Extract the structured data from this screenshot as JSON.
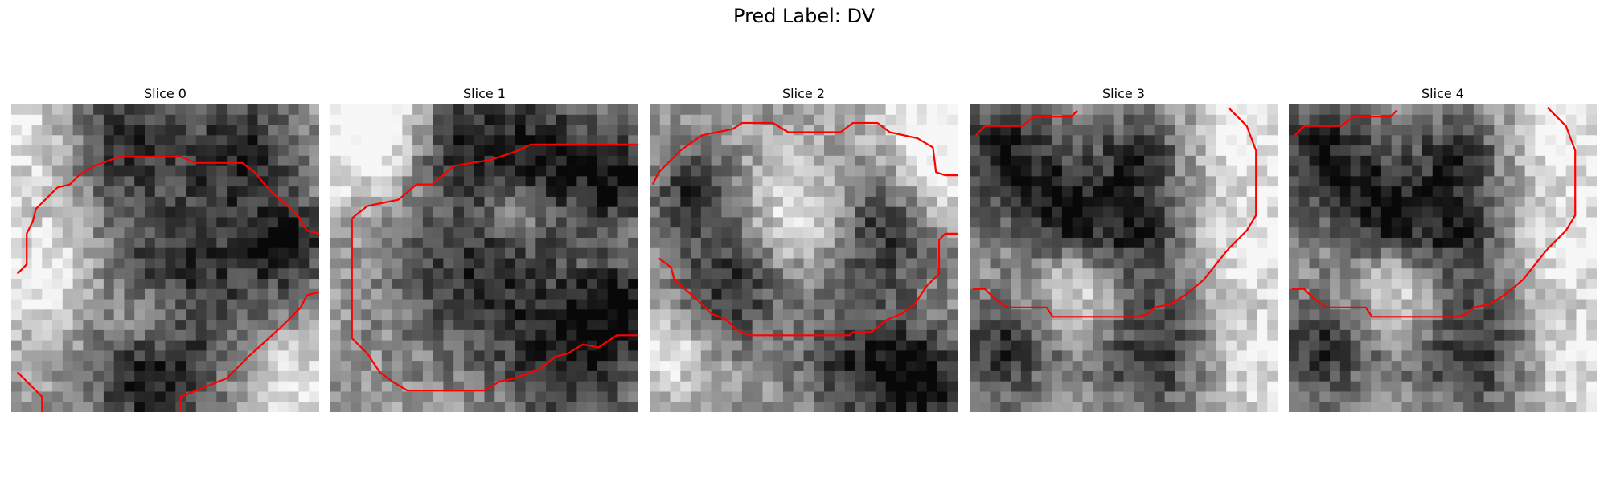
{
  "figure": {
    "title": "Pred Label: DV"
  },
  "slices": [
    {
      "title": "Slice 0",
      "seed": 11,
      "darkBlobs": [
        [
          0.35,
          0.1,
          0.2
        ],
        [
          0.75,
          0.15,
          0.18
        ],
        [
          0.55,
          0.55,
          0.3
        ],
        [
          0.45,
          0.9,
          0.2
        ],
        [
          0.9,
          0.45,
          0.15
        ]
      ],
      "lightBlobs": [
        [
          0.05,
          0.1,
          0.2
        ],
        [
          0.1,
          0.55,
          0.22
        ],
        [
          0.9,
          0.9,
          0.15
        ],
        [
          0.45,
          0.7,
          0.12
        ]
      ],
      "contours": [
        [
          [
            0.02,
            0.55
          ],
          [
            0.05,
            0.52
          ],
          [
            0.05,
            0.42
          ],
          [
            0.07,
            0.38
          ],
          [
            0.08,
            0.34
          ],
          [
            0.12,
            0.3
          ],
          [
            0.15,
            0.27
          ],
          [
            0.19,
            0.26
          ],
          [
            0.22,
            0.23
          ],
          [
            0.27,
            0.2
          ],
          [
            0.35,
            0.17
          ],
          [
            0.55,
            0.17
          ],
          [
            0.6,
            0.19
          ],
          [
            0.75,
            0.19
          ],
          [
            0.79,
            0.22
          ],
          [
            0.84,
            0.28
          ],
          [
            0.93,
            0.36
          ],
          [
            0.96,
            0.41
          ],
          [
            1.0,
            0.42
          ]
        ],
        [
          [
            1.0,
            0.61
          ],
          [
            0.96,
            0.62
          ],
          [
            0.94,
            0.66
          ],
          [
            0.88,
            0.72
          ],
          [
            0.77,
            0.82
          ],
          [
            0.7,
            0.89
          ],
          [
            0.65,
            0.91
          ],
          [
            0.6,
            0.93
          ],
          [
            0.55,
            0.95
          ],
          [
            0.55,
            1.0
          ]
        ],
        [
          [
            0.02,
            0.87
          ],
          [
            0.07,
            0.92
          ],
          [
            0.1,
            0.95
          ],
          [
            0.1,
            1.0
          ]
        ]
      ]
    },
    {
      "title": "Slice 1",
      "seed": 23,
      "darkBlobs": [
        [
          0.4,
          0.1,
          0.18
        ],
        [
          0.7,
          0.15,
          0.2
        ],
        [
          0.95,
          0.25,
          0.15
        ],
        [
          0.5,
          0.55,
          0.3
        ],
        [
          0.8,
          0.85,
          0.22
        ],
        [
          0.95,
          0.65,
          0.15
        ]
      ],
      "lightBlobs": [
        [
          0.05,
          0.1,
          0.25
        ],
        [
          0.2,
          0.05,
          0.15
        ],
        [
          0.6,
          0.35,
          0.1
        ]
      ],
      "contours": [
        [
          [
            0.07,
            0.37
          ],
          [
            0.12,
            0.33
          ],
          [
            0.22,
            0.31
          ],
          [
            0.28,
            0.26
          ],
          [
            0.33,
            0.26
          ],
          [
            0.4,
            0.2
          ],
          [
            0.52,
            0.18
          ],
          [
            0.55,
            0.17
          ],
          [
            0.61,
            0.15
          ],
          [
            0.65,
            0.13
          ],
          [
            1.0,
            0.13
          ]
        ],
        [
          [
            0.07,
            0.37
          ],
          [
            0.07,
            0.76
          ],
          [
            0.12,
            0.81
          ],
          [
            0.16,
            0.87
          ],
          [
            0.2,
            0.9
          ],
          [
            0.25,
            0.93
          ],
          [
            0.5,
            0.93
          ],
          [
            0.55,
            0.9
          ],
          [
            0.6,
            0.89
          ],
          [
            0.68,
            0.86
          ],
          [
            0.73,
            0.82
          ],
          [
            0.77,
            0.81
          ],
          [
            0.82,
            0.78
          ],
          [
            0.87,
            0.79
          ],
          [
            0.9,
            0.77
          ],
          [
            0.93,
            0.75
          ],
          [
            1.0,
            0.75
          ]
        ]
      ]
    },
    {
      "title": "Slice 2",
      "seed": 37,
      "darkBlobs": [
        [
          0.15,
          0.3,
          0.15
        ],
        [
          0.25,
          0.6,
          0.18
        ],
        [
          0.75,
          0.4,
          0.2
        ],
        [
          0.7,
          0.85,
          0.22
        ],
        [
          0.9,
          0.9,
          0.15
        ]
      ],
      "lightBlobs": [
        [
          0.9,
          0.05,
          0.18
        ],
        [
          0.95,
          0.25,
          0.15
        ],
        [
          0.5,
          0.35,
          0.18
        ],
        [
          0.05,
          0.8,
          0.15
        ]
      ],
      "contours": [
        [
          [
            0.01,
            0.26
          ],
          [
            0.03,
            0.22
          ],
          [
            0.07,
            0.18
          ],
          [
            0.1,
            0.15
          ],
          [
            0.17,
            0.1
          ],
          [
            0.27,
            0.08
          ],
          [
            0.3,
            0.06
          ],
          [
            0.4,
            0.06
          ],
          [
            0.45,
            0.09
          ],
          [
            0.62,
            0.09
          ],
          [
            0.66,
            0.06
          ],
          [
            0.74,
            0.06
          ],
          [
            0.78,
            0.09
          ],
          [
            0.87,
            0.11
          ],
          [
            0.92,
            0.14
          ],
          [
            0.93,
            0.22
          ],
          [
            0.96,
            0.23
          ],
          [
            1.0,
            0.23
          ]
        ],
        [
          [
            1.0,
            0.42
          ],
          [
            0.96,
            0.42
          ],
          [
            0.94,
            0.44
          ],
          [
            0.94,
            0.55
          ],
          [
            0.9,
            0.59
          ],
          [
            0.86,
            0.65
          ],
          [
            0.82,
            0.68
          ],
          [
            0.77,
            0.7
          ],
          [
            0.72,
            0.74
          ],
          [
            0.66,
            0.74
          ],
          [
            0.65,
            0.75
          ],
          [
            0.32,
            0.75
          ],
          [
            0.28,
            0.73
          ],
          [
            0.25,
            0.7
          ],
          [
            0.2,
            0.68
          ],
          [
            0.16,
            0.64
          ],
          [
            0.08,
            0.57
          ],
          [
            0.07,
            0.53
          ],
          [
            0.03,
            0.5
          ]
        ]
      ]
    },
    {
      "title": "Slice 3",
      "seed": 51,
      "darkBlobs": [
        [
          0.1,
          0.15,
          0.2
        ],
        [
          0.3,
          0.35,
          0.18
        ],
        [
          0.55,
          0.4,
          0.18
        ],
        [
          0.55,
          0.15,
          0.12
        ],
        [
          0.62,
          0.8,
          0.22
        ],
        [
          0.1,
          0.8,
          0.18
        ]
      ],
      "lightBlobs": [
        [
          0.92,
          0.45,
          0.22
        ],
        [
          0.9,
          0.1,
          0.15
        ],
        [
          0.9,
          0.85,
          0.18
        ],
        [
          0.35,
          0.6,
          0.15
        ]
      ],
      "contours": [
        [
          [
            0.02,
            0.1
          ],
          [
            0.05,
            0.07
          ],
          [
            0.17,
            0.07
          ],
          [
            0.21,
            0.04
          ],
          [
            0.33,
            0.04
          ],
          [
            0.35,
            0.02
          ]
        ],
        [
          [
            0.84,
            0.01
          ],
          [
            0.9,
            0.07
          ],
          [
            0.93,
            0.15
          ],
          [
            0.93,
            0.36
          ],
          [
            0.9,
            0.41
          ],
          [
            0.84,
            0.47
          ],
          [
            0.76,
            0.57
          ],
          [
            0.7,
            0.62
          ],
          [
            0.65,
            0.65
          ],
          [
            0.6,
            0.66
          ],
          [
            0.58,
            0.68
          ],
          [
            0.55,
            0.69
          ],
          [
            0.27,
            0.69
          ],
          [
            0.25,
            0.66
          ],
          [
            0.12,
            0.66
          ],
          [
            0.08,
            0.63
          ],
          [
            0.05,
            0.6
          ],
          [
            0.01,
            0.6
          ]
        ]
      ]
    },
    {
      "title": "Slice 4",
      "seed": 51,
      "darkBlobs": [
        [
          0.1,
          0.15,
          0.2
        ],
        [
          0.3,
          0.35,
          0.18
        ],
        [
          0.55,
          0.4,
          0.18
        ],
        [
          0.55,
          0.15,
          0.12
        ],
        [
          0.62,
          0.8,
          0.22
        ],
        [
          0.1,
          0.8,
          0.18
        ]
      ],
      "lightBlobs": [
        [
          0.92,
          0.45,
          0.22
        ],
        [
          0.9,
          0.1,
          0.15
        ],
        [
          0.9,
          0.85,
          0.18
        ],
        [
          0.35,
          0.6,
          0.15
        ]
      ],
      "contours": [
        [
          [
            0.02,
            0.1
          ],
          [
            0.05,
            0.07
          ],
          [
            0.17,
            0.07
          ],
          [
            0.21,
            0.04
          ],
          [
            0.33,
            0.04
          ],
          [
            0.35,
            0.02
          ]
        ],
        [
          [
            0.84,
            0.01
          ],
          [
            0.9,
            0.07
          ],
          [
            0.93,
            0.15
          ],
          [
            0.93,
            0.36
          ],
          [
            0.9,
            0.41
          ],
          [
            0.84,
            0.47
          ],
          [
            0.76,
            0.57
          ],
          [
            0.7,
            0.62
          ],
          [
            0.65,
            0.65
          ],
          [
            0.6,
            0.66
          ],
          [
            0.58,
            0.68
          ],
          [
            0.55,
            0.69
          ],
          [
            0.27,
            0.69
          ],
          [
            0.25,
            0.66
          ],
          [
            0.12,
            0.66
          ],
          [
            0.08,
            0.63
          ],
          [
            0.05,
            0.6
          ],
          [
            0.01,
            0.6
          ]
        ]
      ]
    }
  ],
  "grid": 30,
  "contourColor": "#ff0000"
}
